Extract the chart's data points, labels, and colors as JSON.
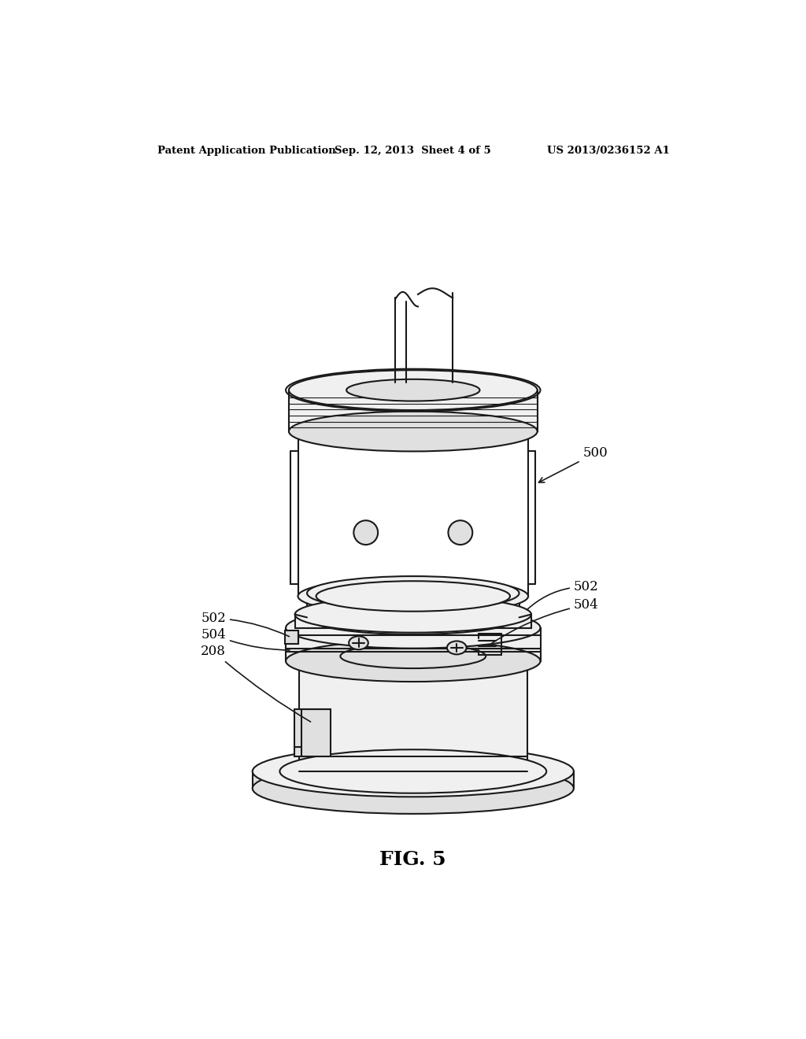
{
  "header_left": "Patent Application Publication",
  "header_center": "Sep. 12, 2013  Sheet 4 of 5",
  "header_right": "US 2013/0236152 A1",
  "fig_label": "FIG. 5",
  "bg_color": "#ffffff",
  "line_color": "#1a1a1a",
  "fill_light": "#f0f0f0",
  "fill_mid": "#e0e0e0",
  "fill_dark": "#c8c8c8",
  "fill_white": "#ffffff",
  "lw": 1.5
}
